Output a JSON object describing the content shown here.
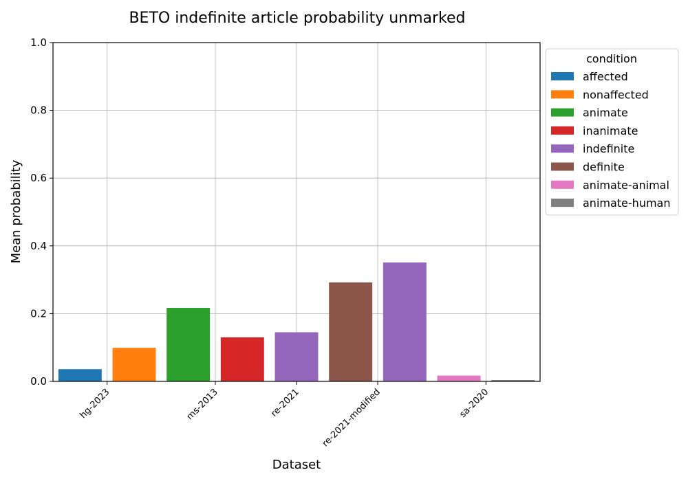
{
  "chart_data": {
    "type": "bar",
    "title": "BETO indefinite article probability unmarked",
    "xlabel": "Dataset",
    "ylabel": "Mean probability",
    "ylim": [
      0,
      1.0
    ],
    "yticks": [
      "0.0",
      "0.2",
      "0.4",
      "0.6",
      "0.8",
      "1.0"
    ],
    "grid": true,
    "legend": {
      "title": "condition",
      "placement": "outside-top-right",
      "entries": [
        {
          "label": "affected",
          "color": "#1f77b4"
        },
        {
          "label": "nonaffected",
          "color": "#ff7f0e"
        },
        {
          "label": "animate",
          "color": "#2ca02c"
        },
        {
          "label": "inanimate",
          "color": "#d62728"
        },
        {
          "label": "indefinite",
          "color": "#9467bd"
        },
        {
          "label": "definite",
          "color": "#8c564b"
        },
        {
          "label": "animate-animal",
          "color": "#e377c2"
        },
        {
          "label": "animate-human",
          "color": "#7f7f7f"
        }
      ]
    },
    "categories": [
      "hg-2023",
      "ms-2013",
      "re-2021",
      "re-2021-modified",
      "sa-2020"
    ],
    "bars": [
      {
        "dataset": "hg-2023",
        "condition": "affected",
        "value": 0.036
      },
      {
        "dataset": "hg-2023",
        "condition": "nonaffected",
        "value": 0.099
      },
      {
        "dataset": "ms-2013",
        "condition": "animate",
        "value": 0.217
      },
      {
        "dataset": "ms-2013",
        "condition": "inanimate",
        "value": 0.13
      },
      {
        "dataset": "re-2021",
        "condition": "indefinite",
        "value": 0.145
      },
      {
        "dataset": "re-2021-modified",
        "condition": "definite",
        "value": 0.292
      },
      {
        "dataset": "re-2021-modified",
        "condition": "indefinite",
        "value": 0.351
      },
      {
        "dataset": "sa-2020",
        "condition": "animate-animal",
        "value": 0.017
      },
      {
        "dataset": "sa-2020",
        "condition": "animate-human",
        "value": 0.004
      }
    ]
  }
}
